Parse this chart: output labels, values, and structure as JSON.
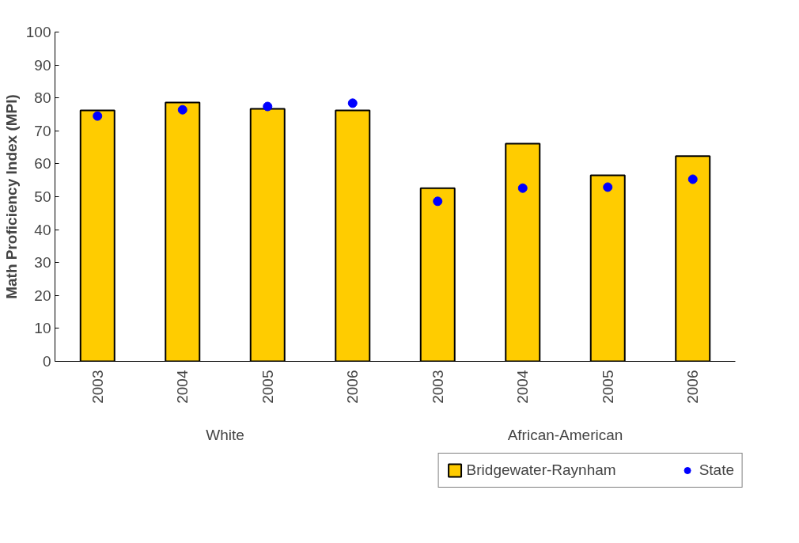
{
  "chart_data": {
    "type": "bar",
    "ylabel": "Math Proficiency Index (MPI)",
    "categories": [
      "2003",
      "2004",
      "2005",
      "2006",
      "2003",
      "2004",
      "2005",
      "2006"
    ],
    "annotations": [
      "White",
      "African-American"
    ],
    "series": [
      {
        "name": "Bridgewater-Raynham",
        "color": "#ffcc00",
        "values": [
          76.2,
          78.6,
          76.7,
          76.2,
          52.6,
          66.1,
          56.5,
          62.3
        ]
      },
      {
        "name": "State",
        "type": "scatter",
        "color": "#0000ff",
        "values": [
          74.5,
          76.4,
          77.4,
          78.4,
          48.6,
          52.6,
          52.9,
          55.3
        ]
      }
    ],
    "ylim": [
      0,
      100
    ],
    "yticks": [
      0,
      10,
      20,
      30,
      40,
      50,
      60,
      70,
      80,
      90,
      100
    ],
    "grid": false,
    "legend": "bottom",
    "marker": "circle"
  }
}
